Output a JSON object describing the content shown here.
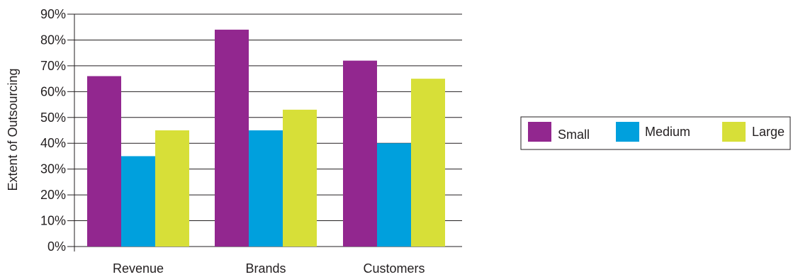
{
  "chart_data": {
    "type": "bar",
    "title": "",
    "xlabel": "",
    "ylabel": "Extent of Outsourcing",
    "ylim": [
      0,
      90
    ],
    "yticks": [
      0,
      10,
      20,
      30,
      40,
      50,
      60,
      70,
      80,
      90
    ],
    "ytick_labels": [
      "0%",
      "10%",
      "20%",
      "30%",
      "40%",
      "50%",
      "60%",
      "70%",
      "80%",
      "90%"
    ],
    "grid": true,
    "legend_position": "right",
    "categories": [
      "Revenue",
      "Brands",
      "Customers"
    ],
    "series": [
      {
        "name": "Small",
        "color": "#92278f",
        "values": [
          66,
          84,
          72
        ]
      },
      {
        "name": "Medium",
        "color": "#00a0dd",
        "values": [
          35,
          45,
          40
        ]
      },
      {
        "name": "Large",
        "color": "#d7df38",
        "values": [
          45,
          53,
          65
        ]
      }
    ]
  }
}
